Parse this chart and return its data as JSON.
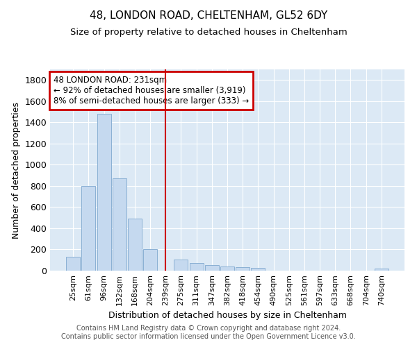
{
  "title1": "48, LONDON ROAD, CHELTENHAM, GL52 6DY",
  "title2": "Size of property relative to detached houses in Cheltenham",
  "xlabel": "Distribution of detached houses by size in Cheltenham",
  "ylabel": "Number of detached properties",
  "categories": [
    "25sqm",
    "61sqm",
    "96sqm",
    "132sqm",
    "168sqm",
    "204sqm",
    "239sqm",
    "275sqm",
    "311sqm",
    "347sqm",
    "382sqm",
    "418sqm",
    "454sqm",
    "490sqm",
    "525sqm",
    "561sqm",
    "597sqm",
    "633sqm",
    "668sqm",
    "704sqm",
    "740sqm"
  ],
  "values": [
    130,
    800,
    1480,
    870,
    490,
    205,
    0,
    105,
    70,
    55,
    40,
    30,
    25,
    0,
    0,
    0,
    0,
    0,
    0,
    0,
    20
  ],
  "bar_color": "#c5d9ef",
  "bar_edge_color": "#8ab0d4",
  "vline_x_index": 6,
  "vline_color": "#cc0000",
  "annotation_line1": "48 LONDON ROAD: 231sqm",
  "annotation_line2": "← 92% of detached houses are smaller (3,919)",
  "annotation_line3": "8% of semi-detached houses are larger (333) →",
  "annotation_box_color": "#cc0000",
  "ylim": [
    0,
    1900
  ],
  "yticks": [
    0,
    200,
    400,
    600,
    800,
    1000,
    1200,
    1400,
    1600,
    1800
  ],
  "footer1": "Contains HM Land Registry data © Crown copyright and database right 2024.",
  "footer2": "Contains public sector information licensed under the Open Government Licence v3.0.",
  "background_color": "#dce9f5",
  "grid_color": "#ffffff"
}
